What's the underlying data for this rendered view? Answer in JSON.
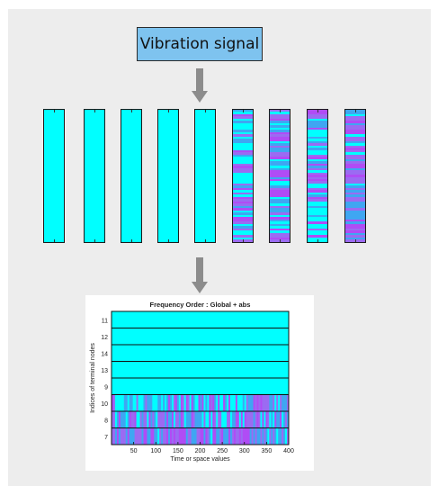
{
  "diagram": {
    "signal_label": "Vibration signal",
    "strips": [
      {
        "pattern": "uniform"
      },
      {
        "pattern": "uniform"
      },
      {
        "pattern": "uniform"
      },
      {
        "pattern": "uniform"
      },
      {
        "pattern": "uniform"
      },
      {
        "pattern": "mixed",
        "variation": 0.55
      },
      {
        "pattern": "mixed",
        "variation": 0.7
      },
      {
        "pattern": "mixed",
        "variation": 0.6
      },
      {
        "pattern": "mixed",
        "variation": 0.95
      }
    ],
    "colors": {
      "box_fill": "#7ec3ef",
      "arrow": "#8c8c8c",
      "uniform": "#00ffff",
      "mix_a": "#3fa6f2",
      "mix_b": "#9b6bf2",
      "mix_c": "#b04cf5"
    }
  },
  "chart_data": {
    "type": "heatmap",
    "title": "Frequency Order : Global + abs",
    "xlabel": "Time or space values",
    "ylabel": "Indices of terminal nodes",
    "xlim": [
      0,
      400
    ],
    "xticks": [
      "50",
      "100",
      "150",
      "200",
      "250",
      "300",
      "350",
      "400"
    ],
    "rows": [
      {
        "label": "11",
        "pattern": "uniform"
      },
      {
        "label": "12",
        "pattern": "uniform"
      },
      {
        "label": "14",
        "pattern": "uniform"
      },
      {
        "label": "13",
        "pattern": "uniform"
      },
      {
        "label": "9",
        "pattern": "uniform"
      },
      {
        "label": "10",
        "pattern": "mixed",
        "variation": 0.55
      },
      {
        "label": "8",
        "pattern": "mixed",
        "variation": 0.75
      },
      {
        "label": "7",
        "pattern": "mixed",
        "variation": 0.95
      }
    ]
  }
}
